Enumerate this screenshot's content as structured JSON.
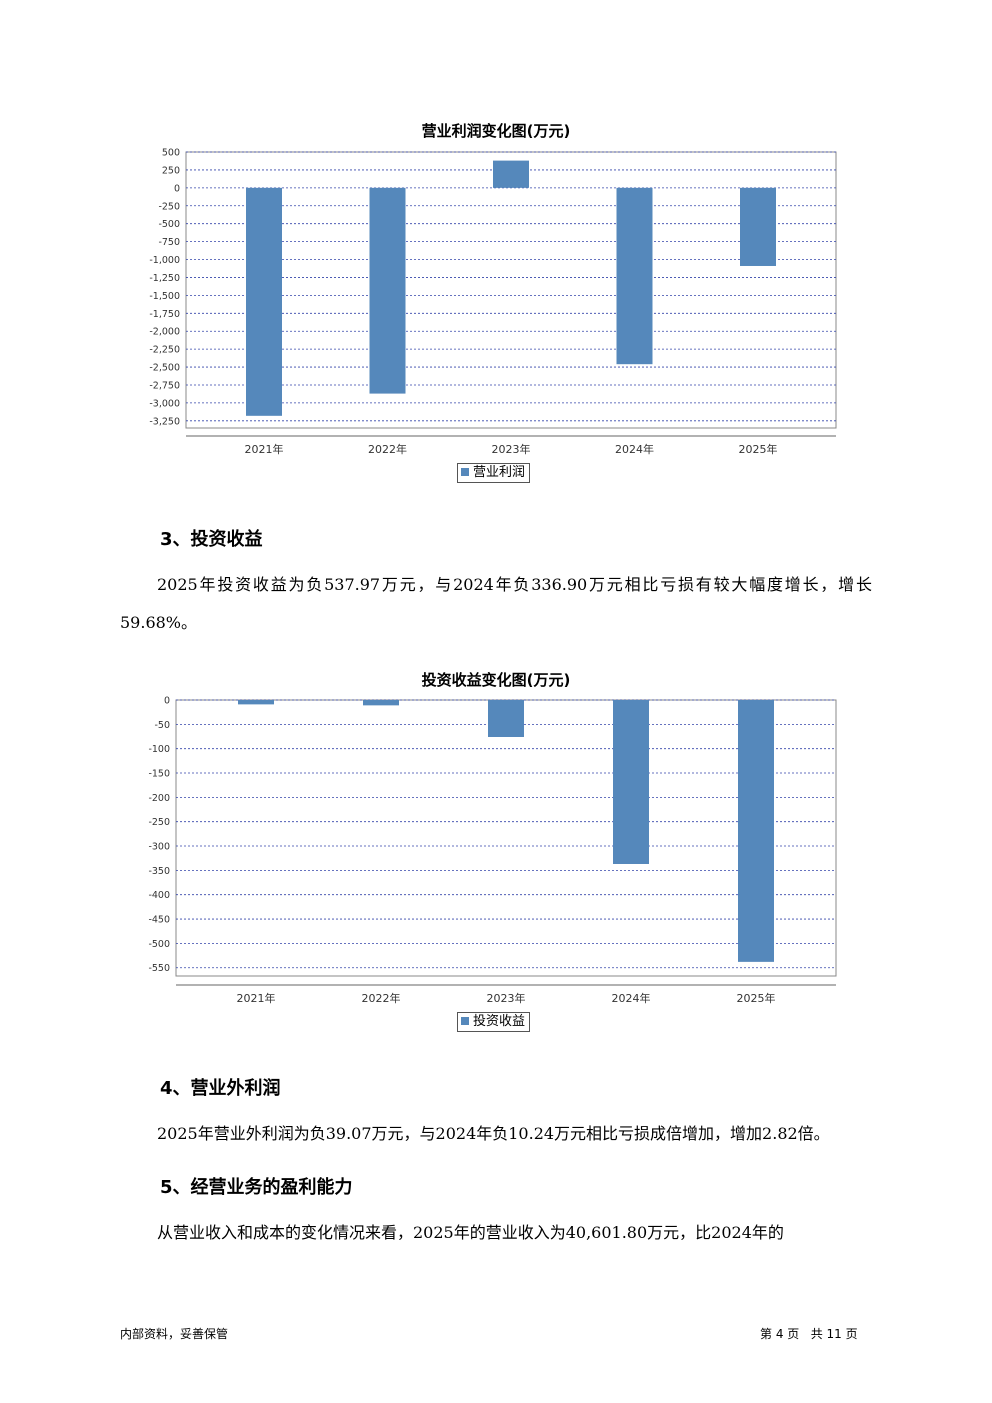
{
  "charts": [
    {
      "title": "营业利润变化图(万元)",
      "legend": "营业利润",
      "chart_data": {
        "type": "bar",
        "title": "营业利润变化图(万元)",
        "categories": [
          "2021年",
          "2022年",
          "2023年",
          "2024年",
          "2025年"
        ],
        "series": [
          {
            "name": "营业利润",
            "values": [
              -3180,
              -2870,
              380,
              -2460,
              -1090
            ]
          }
        ],
        "ylim": [
          -3350,
          500
        ],
        "yticks": [
          500,
          250,
          0,
          -250,
          -500,
          -750,
          -1000,
          -1250,
          -1500,
          -1750,
          -2000,
          -2250,
          -2500,
          -2750,
          -3000,
          -3250
        ],
        "ytick_labels": [
          "500",
          "250",
          "0",
          "-250",
          "-500",
          "-750",
          "-1,000",
          "-1,250",
          "-1,500",
          "-1,750",
          "-2,000",
          "-2,250",
          "-2,500",
          "-2,750",
          "-3,000",
          "-3,250"
        ],
        "grid": true,
        "grid_style": "dashed",
        "legend_position": "bottom-center",
        "bar_color": "#5588bb",
        "grid_color": "#3344aa"
      }
    },
    {
      "title": "投资收益变化图(万元)",
      "legend": "投资收益",
      "chart_data": {
        "type": "bar",
        "title": "投资收益变化图(万元)",
        "categories": [
          "2021年",
          "2022年",
          "2023年",
          "2024年",
          "2025年"
        ],
        "series": [
          {
            "name": "投资收益",
            "values": [
              -9,
              -11,
              -76,
              -336.9,
              -537.97
            ]
          }
        ],
        "ylim": [
          -567,
          0
        ],
        "yticks": [
          0,
          -50,
          -100,
          -150,
          -200,
          -250,
          -300,
          -350,
          -400,
          -450,
          -500,
          -550
        ],
        "ytick_labels": [
          "0",
          "-50",
          "-100",
          "-150",
          "-200",
          "-250",
          "-300",
          "-350",
          "-400",
          "-450",
          "-500",
          "-550"
        ],
        "grid": true,
        "grid_style": "dashed",
        "legend_position": "bottom-center",
        "bar_color": "#5588bb",
        "grid_color": "#3344aa"
      }
    }
  ],
  "sections": {
    "s3": {
      "heading": "3、投资收益",
      "text": "2025年投资收益为负537.97万元，与2024年负336.90万元相比亏损有较大幅度增长，增长59.68%。"
    },
    "s4": {
      "heading": "4、营业外利润",
      "text": "2025年营业外利润为负39.07万元，与2024年负10.24万元相比亏损成倍增加，增加2.82倍。"
    },
    "s5": {
      "heading": "5、经营业务的盈利能力",
      "text": "从营业收入和成本的变化情况来看，2025年的营业收入为40,601.80万元，比2024年的"
    }
  },
  "footer": {
    "left": "内部资料，妥善保管",
    "right": "第 4 页   共 11 页"
  }
}
